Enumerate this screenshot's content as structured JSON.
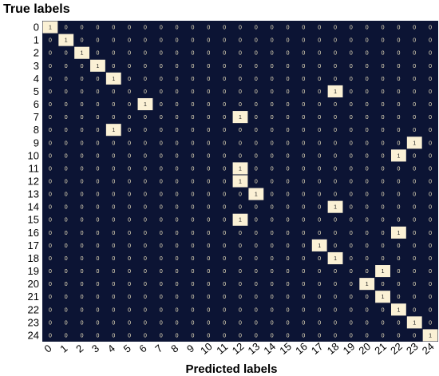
{
  "chart_data": {
    "type": "heatmap",
    "ylabel": "True labels",
    "xlabel": "Predicted labels",
    "x_categories": [
      "0",
      "1",
      "2",
      "3",
      "4",
      "5",
      "6",
      "7",
      "8",
      "9",
      "10",
      "11",
      "12",
      "13",
      "14",
      "15",
      "16",
      "17",
      "18",
      "19",
      "20",
      "21",
      "22",
      "23",
      "24"
    ],
    "y_categories": [
      "0",
      "1",
      "2",
      "3",
      "4",
      "5",
      "6",
      "7",
      "8",
      "9",
      "10",
      "11",
      "12",
      "13",
      "14",
      "15",
      "16",
      "17",
      "18",
      "19",
      "20",
      "21",
      "22",
      "23",
      "24"
    ],
    "background_value": 0,
    "cells": [
      {
        "row": 0,
        "col": 0,
        "value": 1
      },
      {
        "row": 1,
        "col": 1,
        "value": 1
      },
      {
        "row": 2,
        "col": 2,
        "value": 1
      },
      {
        "row": 3,
        "col": 3,
        "value": 1
      },
      {
        "row": 4,
        "col": 4,
        "value": 1
      },
      {
        "row": 5,
        "col": 18,
        "value": 1
      },
      {
        "row": 6,
        "col": 6,
        "value": 1
      },
      {
        "row": 7,
        "col": 12,
        "value": 1
      },
      {
        "row": 8,
        "col": 4,
        "value": 1
      },
      {
        "row": 9,
        "col": 23,
        "value": 1
      },
      {
        "row": 10,
        "col": 22,
        "value": 1
      },
      {
        "row": 11,
        "col": 12,
        "value": 1
      },
      {
        "row": 12,
        "col": 12,
        "value": 1
      },
      {
        "row": 13,
        "col": 13,
        "value": 1
      },
      {
        "row": 14,
        "col": 18,
        "value": 1
      },
      {
        "row": 15,
        "col": 12,
        "value": 1
      },
      {
        "row": 16,
        "col": 22,
        "value": 1
      },
      {
        "row": 17,
        "col": 17,
        "value": 1
      },
      {
        "row": 18,
        "col": 18,
        "value": 1
      },
      {
        "row": 19,
        "col": 21,
        "value": 1
      },
      {
        "row": 20,
        "col": 20,
        "value": 1
      },
      {
        "row": 21,
        "col": 21,
        "value": 1
      },
      {
        "row": 22,
        "col": 22,
        "value": 1
      },
      {
        "row": 23,
        "col": 23,
        "value": 1
      },
      {
        "row": 24,
        "col": 24,
        "value": 1
      }
    ],
    "colors": {
      "low": "#0c1434",
      "high": "#fbf1d5",
      "low_text": "#f4e9c4",
      "high_text": "#1a1a1a"
    }
  }
}
